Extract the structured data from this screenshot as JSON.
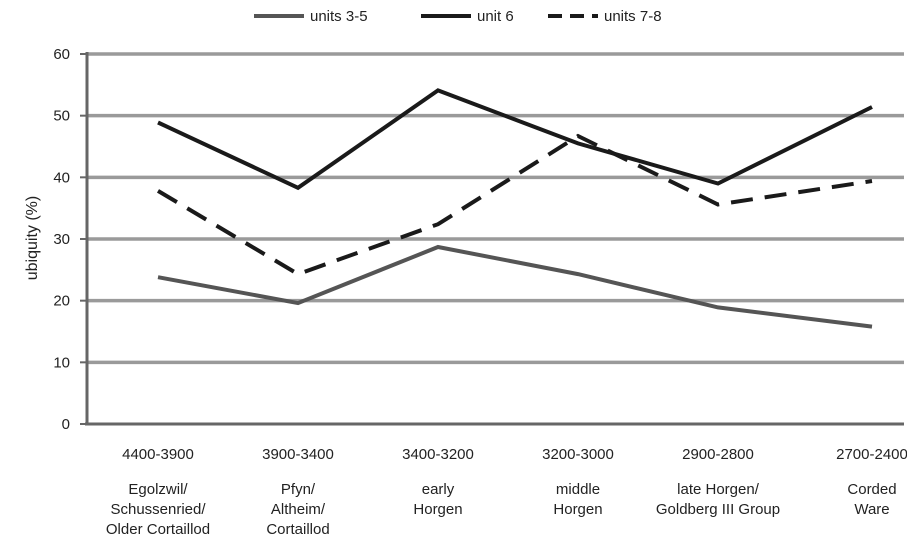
{
  "chart_data": {
    "type": "line",
    "title": "",
    "xlabel": "",
    "ylabel": "ubiquity (%)",
    "ylim": [
      0,
      60
    ],
    "yticks": [
      0,
      10,
      20,
      30,
      40,
      50,
      60
    ],
    "grid": true,
    "legend_position": "top",
    "categories": [
      {
        "period": "4400-3900",
        "culture": [
          "Egolzwil/",
          "Schussenried/",
          "Older Cortaillod"
        ]
      },
      {
        "period": "3900-3400",
        "culture": [
          "Pfyn/",
          "Altheim/",
          "Cortaillod"
        ]
      },
      {
        "period": "3400-3200",
        "culture": [
          "early",
          "Horgen"
        ]
      },
      {
        "period": "3200-3000",
        "culture": [
          "middle",
          "Horgen"
        ]
      },
      {
        "period": "2900-2800",
        "culture": [
          "late Horgen/",
          "Goldberg III Group"
        ]
      },
      {
        "period": "2700-2400",
        "culture": [
          "Corded",
          "Ware"
        ]
      }
    ],
    "series": [
      {
        "name": "units 3-5",
        "values": [
          23.8,
          19.6,
          28.7,
          24.3,
          18.9,
          15.8
        ],
        "color": "#555555",
        "style": "solid"
      },
      {
        "name": "unit 6",
        "values": [
          48.9,
          38.3,
          54.1,
          45.5,
          39.0,
          51.4
        ],
        "color": "#1a1a1a",
        "style": "solid"
      },
      {
        "name": "units 7-8",
        "values": [
          37.8,
          24.3,
          32.4,
          46.7,
          35.6,
          39.4
        ],
        "color": "#1a1a1a",
        "style": "dashed"
      }
    ],
    "colors": {
      "grid": "#9a9a9a",
      "axis": "#666666"
    }
  }
}
